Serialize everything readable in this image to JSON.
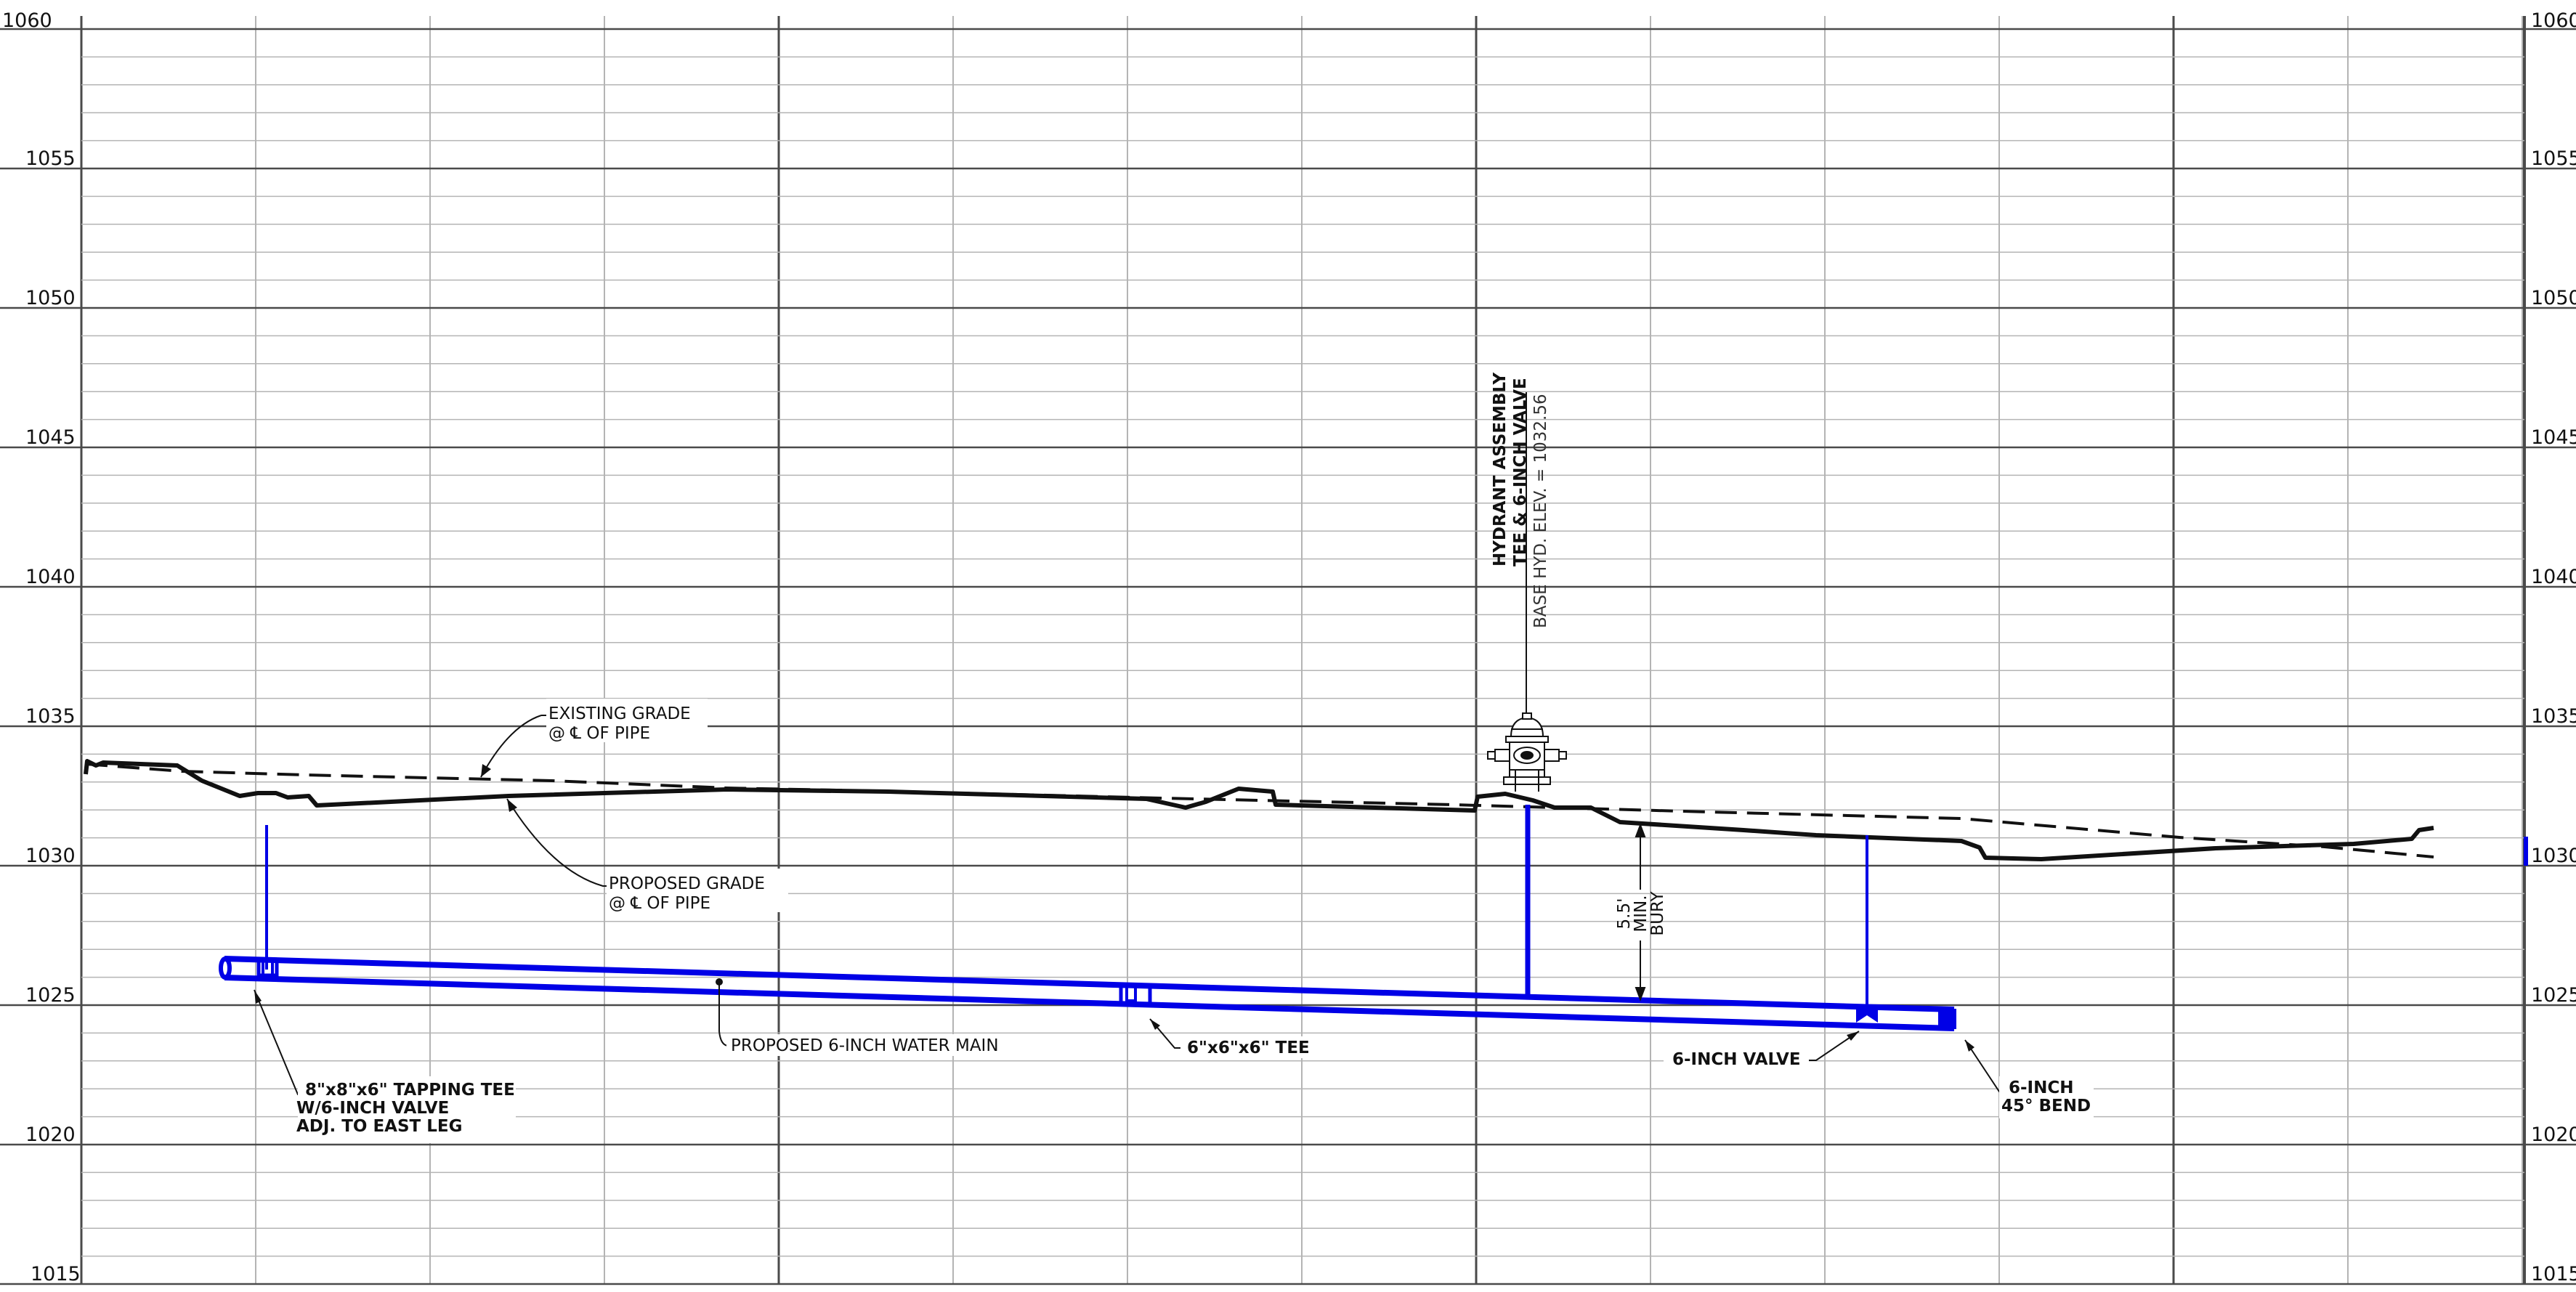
{
  "profile": {
    "elevation_labels_left": [
      "1060",
      "1055",
      "1050",
      "1045",
      "1040",
      "1035",
      "1030",
      "1025",
      "1020",
      "1015"
    ],
    "elevation_labels_right": [
      "1060",
      "1055",
      "1050",
      "1045",
      "1040",
      "1035",
      "1030",
      "1025",
      "1020",
      "1015"
    ],
    "colors": {
      "pipe": "#0000e6",
      "grid_minor": "#b4b4b4",
      "grid_major": "#4a4a4a",
      "linework": "#111111"
    }
  },
  "callouts": {
    "existing_grade": [
      "EXISTING GRADE",
      "@ ℄ OF PIPE"
    ],
    "proposed_grade": [
      "PROPOSED GRADE",
      "@ ℄ OF PIPE"
    ],
    "water_main": "PROPOSED 6-INCH WATER MAIN",
    "tapping_tee": [
      "8\"x8\"x6\" TAPPING TEE",
      "W/6-INCH VALVE",
      "ADJ. TO EAST LEG"
    ],
    "tee": "6\"x6\"x6\" TEE",
    "valve": "6-INCH VALVE",
    "bend": [
      "6-INCH",
      "45° BEND"
    ],
    "bury": [
      "5.5'",
      "MIN.",
      "BURY"
    ],
    "hydrant": [
      "HYDRANT ASSEMBLY",
      "TEE & 6-INCH VALVE",
      "BASE HYD. ELEV. = 1032.56"
    ]
  }
}
